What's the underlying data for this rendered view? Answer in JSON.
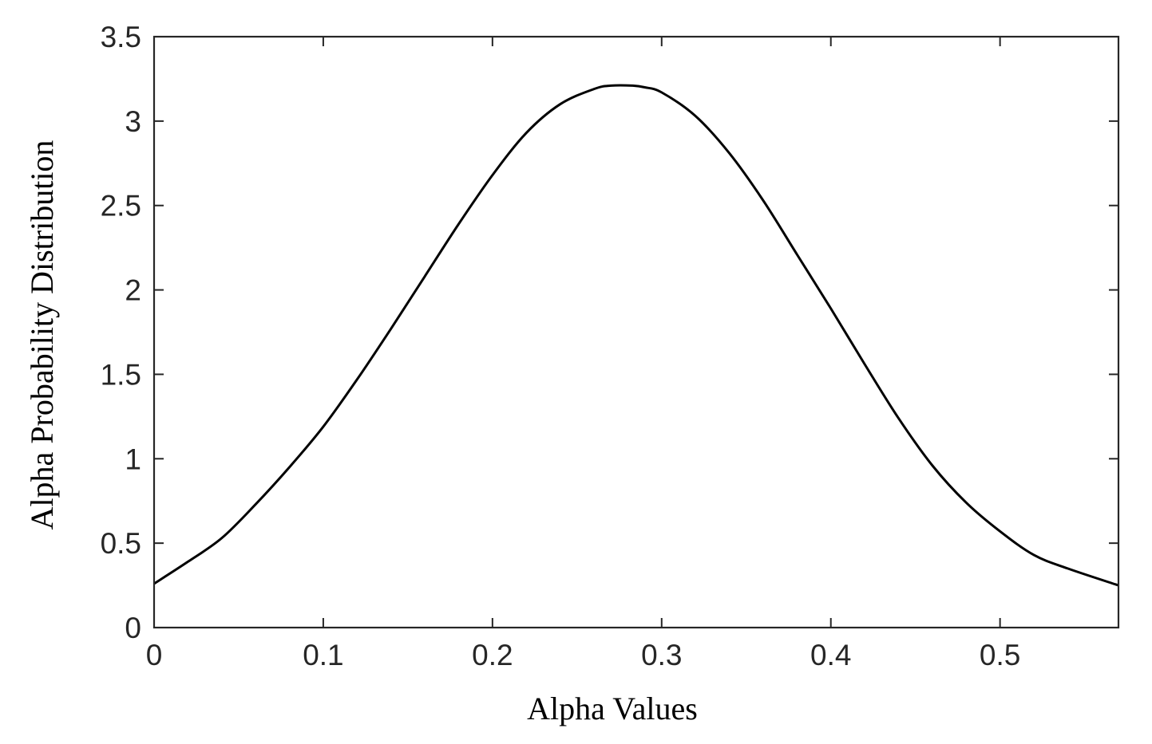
{
  "chart_data": {
    "type": "line",
    "title": "",
    "xlabel": "Alpha Values",
    "ylabel": "Alpha Probability Distribution",
    "xlim": [
      0,
      0.57
    ],
    "ylim": [
      0,
      3.5
    ],
    "xticks": [
      0,
      0.1,
      0.2,
      0.3,
      0.4,
      0.5
    ],
    "xtick_labels": [
      "0",
      "0.1",
      "0.2",
      "0.3",
      "0.4",
      "0.5"
    ],
    "yticks": [
      0,
      0.5,
      1,
      1.5,
      2,
      2.5,
      3,
      3.5
    ],
    "ytick_labels": [
      "0",
      "0.5",
      "1",
      "1.5",
      "2",
      "2.5",
      "3",
      "3.5"
    ],
    "grid": false,
    "box": true,
    "series": [
      {
        "color": "#000000",
        "x": [
          0,
          0.02,
          0.04,
          0.06,
          0.08,
          0.1,
          0.12,
          0.14,
          0.16,
          0.18,
          0.2,
          0.22,
          0.24,
          0.26,
          0.27,
          0.283,
          0.29,
          0.3,
          0.32,
          0.34,
          0.36,
          0.38,
          0.4,
          0.42,
          0.44,
          0.46,
          0.48,
          0.5,
          0.52,
          0.54,
          0.57
        ],
        "y": [
          0.26,
          0.39,
          0.53,
          0.73,
          0.95,
          1.19,
          1.47,
          1.77,
          2.08,
          2.39,
          2.68,
          2.93,
          3.1,
          3.19,
          3.21,
          3.21,
          3.2,
          3.17,
          3.03,
          2.81,
          2.53,
          2.21,
          1.89,
          1.56,
          1.24,
          0.96,
          0.74,
          0.57,
          0.43,
          0.35,
          0.25
        ]
      }
    ]
  }
}
